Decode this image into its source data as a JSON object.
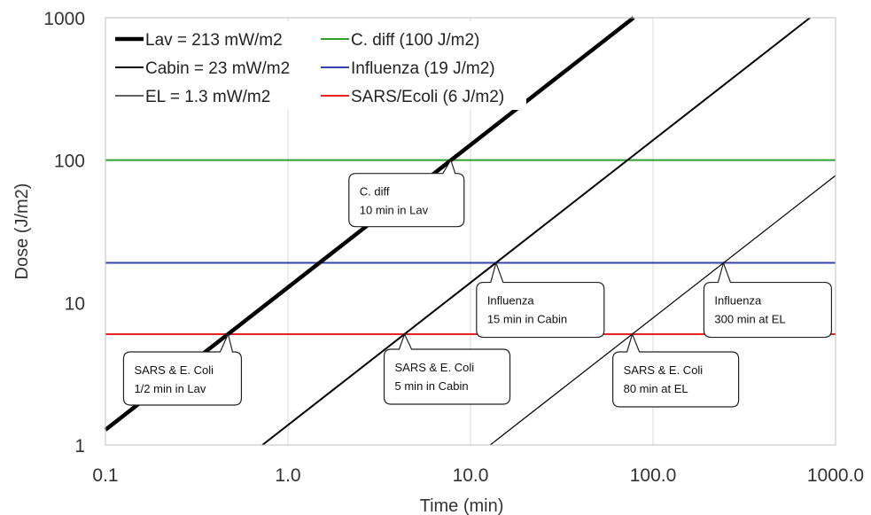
{
  "chart_data": {
    "type": "line",
    "xscale": "log",
    "yscale": "log",
    "xlim": [
      0.1,
      1000.0
    ],
    "ylim": [
      1,
      1000
    ],
    "grid": "vertical",
    "legend_position": "top-left",
    "xlabel": "Time (min)",
    "ylabel": "Dose (J/m2)",
    "x_ticks": [
      "0.1",
      "1.0",
      "10.0",
      "100.0",
      "1000.0"
    ],
    "y_ticks": [
      "1",
      "10",
      "100",
      "1000"
    ],
    "series": [
      {
        "name": "Lav = 213 mW/m2",
        "kind": "dose",
        "irradiance_mW_m2": 213,
        "color": "#000000",
        "style": "thick"
      },
      {
        "name": "Cabin = 23 mW/m2",
        "kind": "dose",
        "irradiance_mW_m2": 23,
        "color": "#000000",
        "style": "medium"
      },
      {
        "name": "EL = 1.3 mW/m2",
        "kind": "dose",
        "irradiance_mW_m2": 1.3,
        "color": "#000000",
        "style": "thin"
      },
      {
        "name": "C. diff (100 J/m2)",
        "kind": "threshold",
        "value": 100,
        "color": "#2ca02c"
      },
      {
        "name": "Influenza (19 J/m2)",
        "kind": "threshold",
        "value": 19,
        "color": "#3344a8"
      },
      {
        "name": "SARS/Ecoli (6 J/m2)",
        "kind": "threshold",
        "value": 6,
        "color": "#e8221f"
      }
    ],
    "annotations": [
      {
        "lines": [
          "C. diff",
          "10 min in Lav"
        ],
        "x": 7.8,
        "y": 100
      },
      {
        "lines": [
          "Influenza",
          "15 min in Cabin"
        ],
        "x": 13.8,
        "y": 19
      },
      {
        "lines": [
          "SARS & E. Coli",
          "1/2 min in Lav"
        ],
        "x": 0.47,
        "y": 6
      },
      {
        "lines": [
          "SARS & E. Coli",
          "5 min in Cabin"
        ],
        "x": 4.35,
        "y": 6
      },
      {
        "lines": [
          "Influenza",
          "300 min at EL"
        ],
        "x": 243,
        "y": 19
      },
      {
        "lines": [
          "SARS & E. Coli",
          "80 min at EL"
        ],
        "x": 77,
        "y": 6
      }
    ]
  }
}
